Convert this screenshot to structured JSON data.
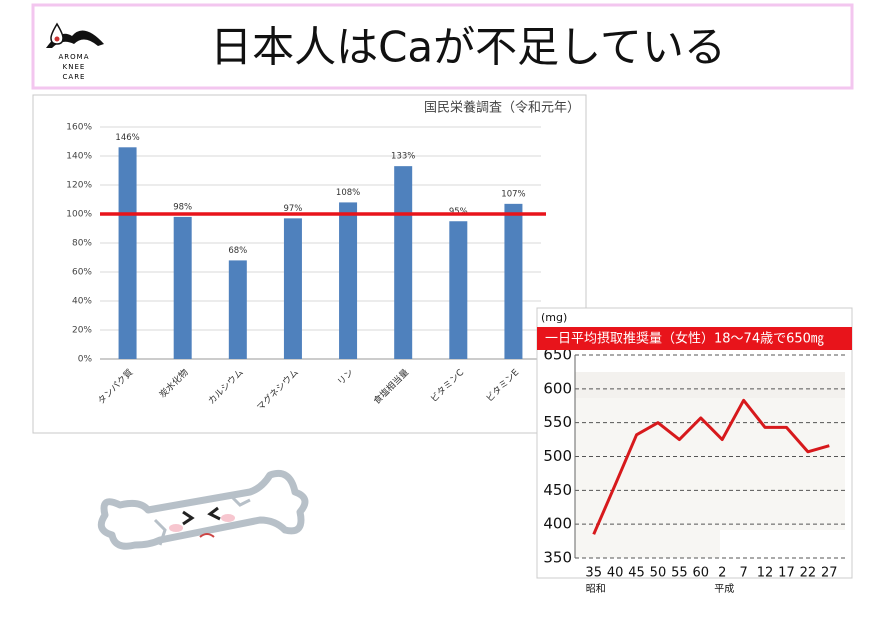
{
  "header": {
    "logo": [
      "AROMA",
      "KNEE",
      "CARE"
    ],
    "title": "日本人はCaが不足している"
  },
  "chart_data": [
    {
      "type": "bar",
      "title": "国民栄養調査（令和元年）",
      "categories": [
        "タンパク質",
        "炭水化物",
        "カルシウム",
        "マグネシウム",
        "リン",
        "食塩相当量",
        "ビタミンC",
        "ビタミンE"
      ],
      "values": [
        146,
        98,
        68,
        97,
        108,
        133,
        95,
        107
      ],
      "value_labels": [
        "146%",
        "98%",
        "68%",
        "97%",
        "108%",
        "133%",
        "95%",
        "107%"
      ],
      "color": "#4f81bd",
      "ylim": [
        0,
        160
      ],
      "yticks": [
        {
          "value": 0,
          "label": "0%"
        },
        {
          "value": 20,
          "label": "20%"
        },
        {
          "value": 40,
          "label": "40%"
        },
        {
          "value": 60,
          "label": "60%"
        },
        {
          "value": 80,
          "label": "80%"
        },
        {
          "value": 100,
          "label": "100%"
        },
        {
          "value": 120,
          "label": "120%"
        },
        {
          "value": 140,
          "label": "140%"
        },
        {
          "value": 160,
          "label": "160%"
        }
      ],
      "grid": true,
      "reference_line": {
        "value": 100,
        "color": "#e8141b"
      }
    },
    {
      "type": "line",
      "y_label": "(mg)",
      "annotation": "一日平均摂取推奨量（女性）18〜74歳で650㎎",
      "categories": [
        "35",
        "40",
        "45",
        "50",
        "55",
        "60",
        "2",
        "7",
        "12",
        "17",
        "22",
        "27"
      ],
      "x_groups": [
        "昭和",
        null,
        null,
        null,
        null,
        null,
        "平成",
        null,
        null,
        null,
        null,
        null
      ],
      "values": [
        385,
        458,
        532,
        550,
        525,
        557,
        525,
        583,
        543,
        543,
        507,
        516
      ],
      "color": "#d7191c",
      "ylim": [
        350,
        650
      ],
      "yticks": [
        350,
        400,
        450,
        500,
        550,
        600,
        650
      ],
      "grid": true
    }
  ]
}
